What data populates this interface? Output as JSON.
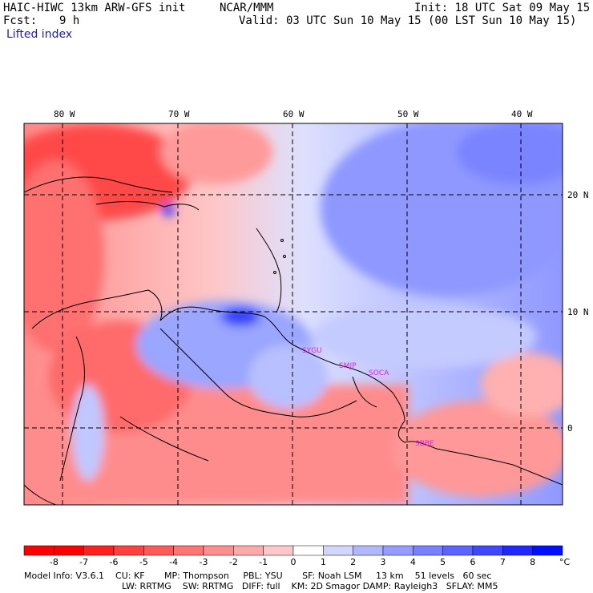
{
  "header": {
    "model": "HAIC-HIWC 13km ARW-GFS init",
    "org": "NCAR/MMM",
    "init": "Init: 18 UTC Sat 09 May 15",
    "fcst_label": "Fcst:",
    "fcst_value": "9 h",
    "valid": "Valid: 03 UTC Sun 10 May 15 (00 LST Sun 10 May 15)",
    "field": "Lifted index"
  },
  "map": {
    "lon_labels": [
      "80 W",
      "70 W",
      "60 W",
      "50 W",
      "40 W"
    ],
    "lat_labels": [
      "20 N",
      "10 N",
      "0"
    ],
    "stations": [
      "SYGU",
      "SMJP",
      "SOCA",
      "SBBE"
    ],
    "station_color": "#e020e0"
  },
  "colorbar": {
    "levels": [
      "-8",
      "-7",
      "-6",
      "-5",
      "-4",
      "-3",
      "-2",
      "-1",
      "0",
      "1",
      "2",
      "3",
      "4",
      "5",
      "6",
      "7",
      "8"
    ],
    "unit": "°C",
    "colors": [
      "#ff0000",
      "#ff2020",
      "#ff4040",
      "#ff5a5a",
      "#ff7474",
      "#ff8e8e",
      "#ffaaaa",
      "#ffc8c8",
      "#ffffff",
      "#d0d6ff",
      "#b0b8ff",
      "#949cff",
      "#7880ff",
      "#5c64ff",
      "#4048ff",
      "#2028ff",
      "#0010ff"
    ]
  },
  "footer": {
    "line1": "Model Info: V3.6.1    CU: KF       MP: Thompson     PBL: YSU       SF: Noah LSM     13 km    51 levels   60 sec",
    "line2": "LW: RRTMG    SW: RRTMG   DIFF: full    KM: 2D Smagor DAMP: Rayleigh3   SFLAY: MM5"
  }
}
